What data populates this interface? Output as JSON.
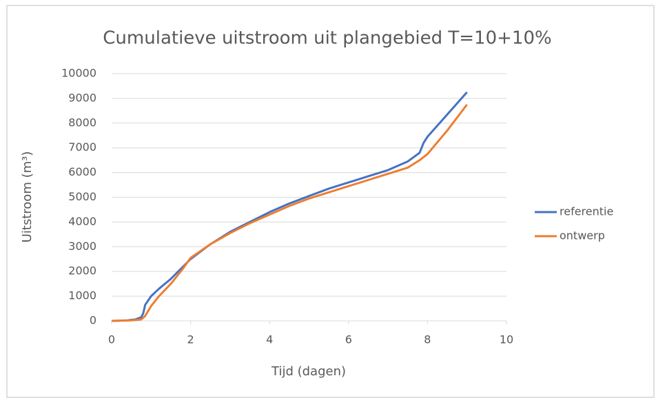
{
  "chart_data": {
    "type": "scatter",
    "title": "Cumulatieve uitstroom uit plangebied T=10+10%",
    "x_label": "Tijd (dagen)",
    "y_label": "Uitstroom (m³)",
    "xlim": [
      0,
      10
    ],
    "xticks": [
      0,
      2,
      4,
      6,
      8,
      10
    ],
    "ylim": [
      0,
      10000
    ],
    "yticks": [
      0,
      1000,
      2000,
      3000,
      4000,
      5000,
      6000,
      7000,
      8000,
      9000,
      10000
    ],
    "grid": true,
    "legend": "right",
    "series": [
      {
        "name": "referentie",
        "color": "#4472c4",
        "x": [
          0,
          0.4,
          0.6,
          0.75,
          0.8,
          0.85,
          1.0,
          1.2,
          1.5,
          2.0,
          2.5,
          3.0,
          3.5,
          4.0,
          4.5,
          5.0,
          5.5,
          6.0,
          6.5,
          7.0,
          7.5,
          7.8,
          7.9,
          8.0,
          8.5,
          9.0
        ],
        "values": [
          0,
          20,
          60,
          150,
          300,
          650,
          1000,
          1300,
          1700,
          2500,
          3100,
          3600,
          4000,
          4400,
          4750,
          5050,
          5350,
          5600,
          5850,
          6100,
          6450,
          6800,
          7200,
          7450,
          8350,
          9250
        ]
      },
      {
        "name": "ontwerp",
        "color": "#ed7d31",
        "x": [
          0,
          0.5,
          0.75,
          0.85,
          1.0,
          1.2,
          1.5,
          1.8,
          2.0,
          2.5,
          3.0,
          3.5,
          4.0,
          4.5,
          5.0,
          5.5,
          6.0,
          6.5,
          7.0,
          7.5,
          7.8,
          8.0,
          8.5,
          9.0
        ],
        "values": [
          0,
          20,
          60,
          200,
          600,
          1000,
          1500,
          2100,
          2550,
          3100,
          3550,
          3950,
          4300,
          4650,
          4950,
          5200,
          5450,
          5700,
          5950,
          6200,
          6500,
          6750,
          7700,
          8750
        ]
      }
    ]
  }
}
